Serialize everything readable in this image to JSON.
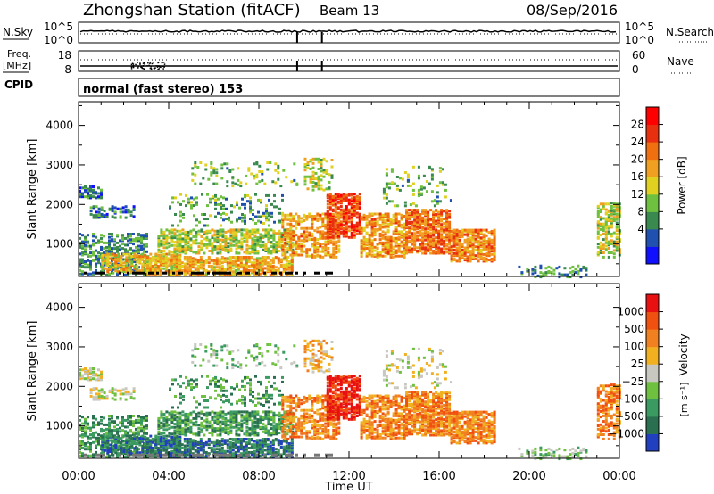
{
  "header": {
    "station": "Zhongshan Station (fitACF)",
    "beam": "Beam 13",
    "date": "08/Sep/2016"
  },
  "top_panels": {
    "nsky_label": "N.Sky",
    "nsearch_label": "N.Search",
    "nsky_ticks": [
      "10^5",
      "10^0"
    ],
    "nsearch_ticks": [
      "10^5",
      "10^0"
    ],
    "freq_label": "Freq.",
    "freq_unit": "[MHz]",
    "freq_ticks": [
      "18",
      "8"
    ],
    "nave_label": "Nave",
    "nave_ticks": [
      "60",
      "0"
    ],
    "cpid_label": "CPID",
    "cpid_text": "normal (fast stereo) 153"
  },
  "chart_data": [
    {
      "type": "heatmap",
      "panel": "power",
      "ylabel": "Slant Range [km]",
      "ylim": [
        180,
        4600
      ],
      "y_ticks": [
        "4000",
        "3000",
        "2000",
        "1000"
      ],
      "x_ticks": [
        "00:00",
        "04:00",
        "08:00",
        "12:00",
        "16:00",
        "20:00",
        "00:00"
      ],
      "colorbar": {
        "label": "Power [dB]",
        "tick_labels": [
          "28",
          "24",
          "20",
          "16",
          "12",
          "8",
          "4"
        ],
        "colors": [
          "#1010ff",
          "#2050b0",
          "#3a8a50",
          "#70c040",
          "#e0d020",
          "#f0a020",
          "#f07010",
          "#e83010",
          "#ff0000"
        ]
      }
    },
    {
      "type": "heatmap",
      "panel": "velocity",
      "ylabel": "Slant Range [km]",
      "ylim": [
        180,
        4600
      ],
      "y_ticks": [
        "4000",
        "3000",
        "2000",
        "1000"
      ],
      "x_ticks": [
        "00:00",
        "04:00",
        "08:00",
        "12:00",
        "16:00",
        "20:00",
        "00:00"
      ],
      "xlabel": "Time UT",
      "colorbar": {
        "label": "Velocity",
        "unit": "[m s⁻¹]",
        "tick_labels": [
          "1000",
          "500",
          "100",
          "25",
          "−25",
          "−100",
          "−500",
          "−1000"
        ],
        "colors": [
          "#2040c0",
          "#2a7050",
          "#3a9a60",
          "#70c040",
          "#c8c8c0",
          "#f0b020",
          "#f08020",
          "#f05010",
          "#e81010"
        ]
      }
    }
  ]
}
